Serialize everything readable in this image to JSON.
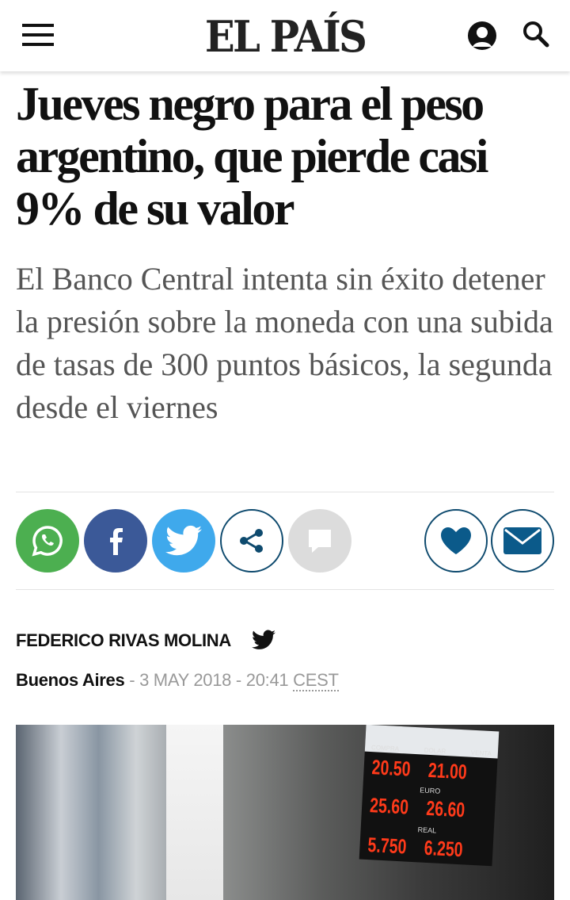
{
  "header": {
    "logo": "EL PAÍS",
    "icons": [
      "menu-icon",
      "user-icon",
      "search-icon"
    ]
  },
  "article": {
    "title": "Jueves negro para el peso argentino, que pierde casi 9% de su valor",
    "subtitle": "El Banco Central intenta sin éxito detener la presión sobre la moneda con una subida de tasas de 300 puntos básicos, la segunda desde el viernes",
    "author": "FEDERICO RIVAS MOLINA",
    "location": "Buenos Aires",
    "separator": " - ",
    "date": "3 MAY 2018 - 20:41",
    "timezone": "CEST"
  },
  "share": {
    "colors": {
      "whatsapp": "#4caf50",
      "facebook": "#3b5998",
      "twitter": "#3fa9ec",
      "outline": "#0e4a6e",
      "comments": "#dcdcdc",
      "accent": "#0b5a8a"
    }
  },
  "photo": {
    "sign": {
      "compra": "COMPRA",
      "dolar": "DOLAR",
      "venta": "VENTA",
      "euro": "EURO",
      "real": "REAL",
      "rows": [
        [
          "20.50",
          "21.00"
        ],
        [
          "25.60",
          "26.60"
        ],
        [
          "5.750",
          "6.250"
        ]
      ]
    }
  }
}
